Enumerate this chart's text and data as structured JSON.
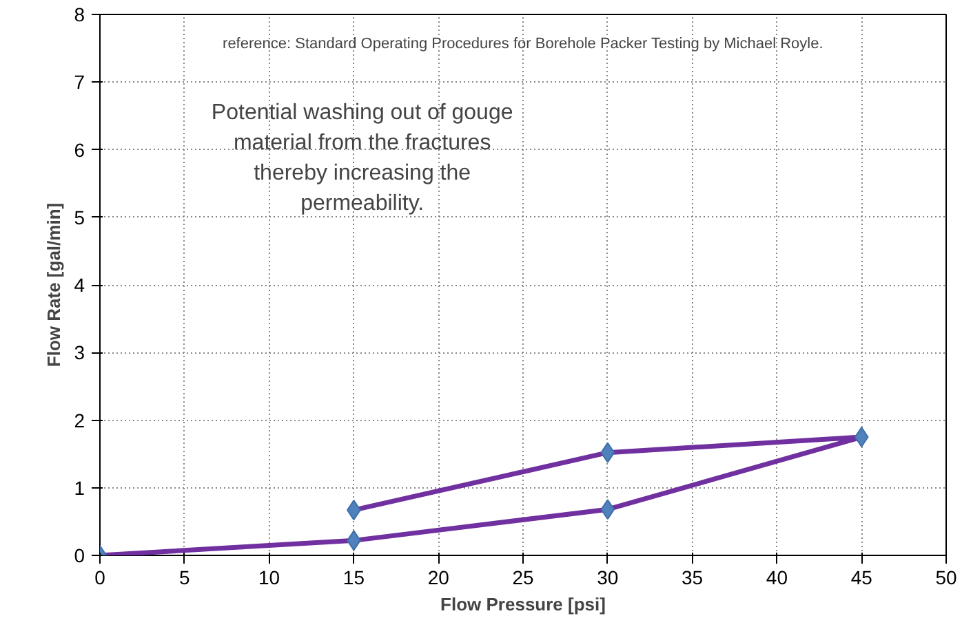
{
  "chart_data": {
    "type": "line",
    "xlabel": "Flow Pressure [psi]",
    "ylabel": "Flow Rate [gal/min]",
    "x": [
      0,
      15,
      30,
      45,
      30,
      15
    ],
    "series": [
      {
        "color": "#7030a0",
        "values": [
          0,
          0.22,
          0.68,
          1.75,
          1.52,
          0.67
        ]
      }
    ],
    "marker": "diamond",
    "line_style": "solid",
    "grid": true,
    "xlim": [
      0,
      50
    ],
    "ylim": [
      0,
      8
    ],
    "xticks": [
      0,
      5,
      10,
      15,
      20,
      25,
      30,
      35,
      40,
      45,
      50
    ],
    "yticks": [
      0,
      1,
      2,
      3,
      4,
      5,
      6,
      7,
      8
    ],
    "annotations": [
      "reference: Standard Operating Procedures for Borehole Packer Testing by Michael Royle.",
      "Potential washing out of gouge\nmaterial from the fractures\nthereby increasing the\npermeability."
    ]
  }
}
